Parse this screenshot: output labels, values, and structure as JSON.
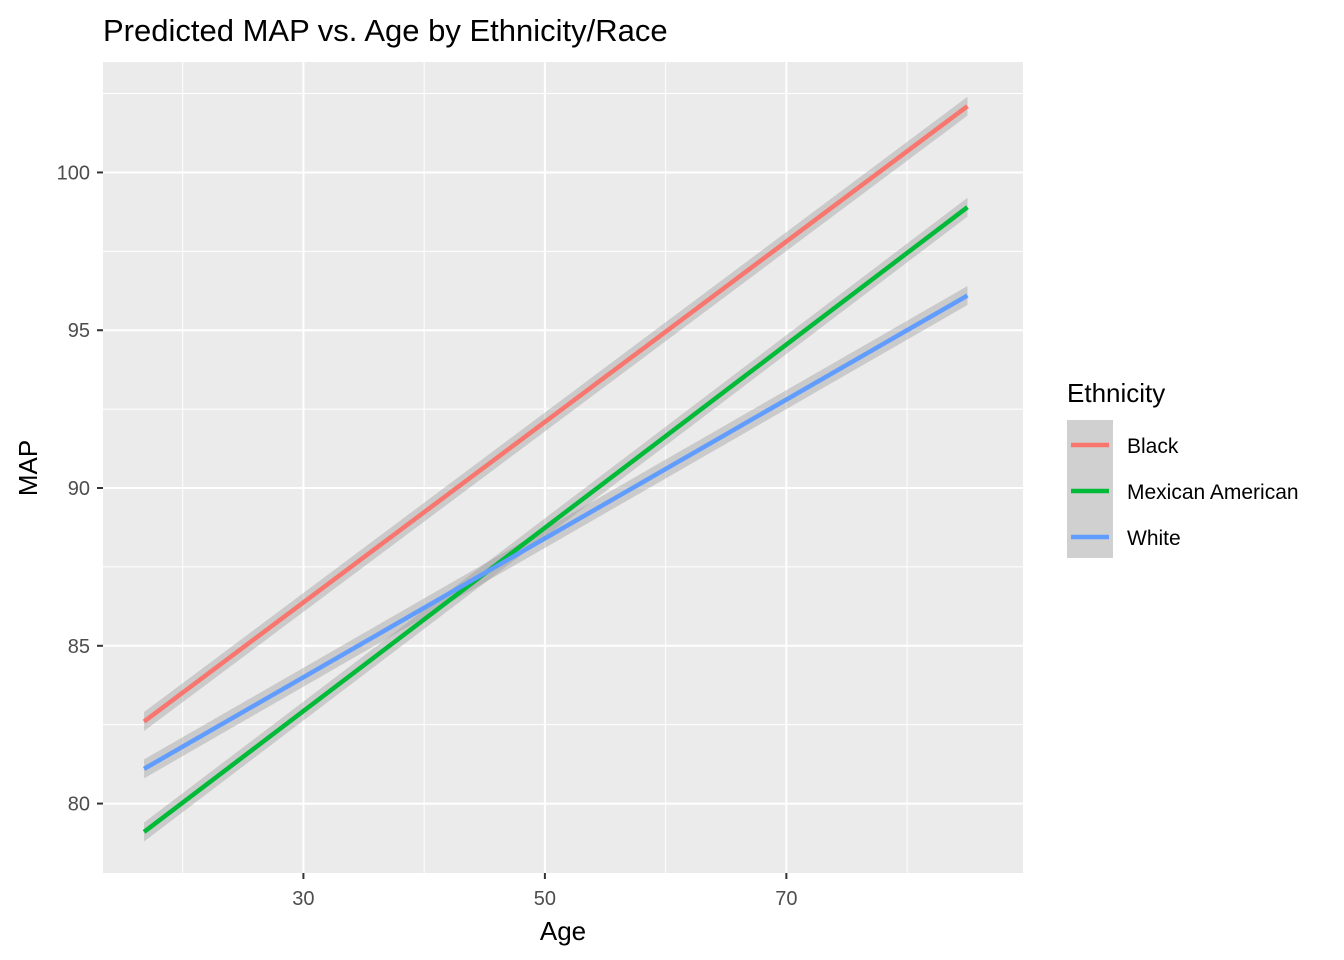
{
  "chart_data": {
    "type": "line",
    "title": "Predicted MAP vs. Age by Ethnicity/Race",
    "xlabel": "Age",
    "ylabel": "MAP",
    "xlim": [
      13.4,
      89.6
    ],
    "ylim": [
      77.8,
      103.5
    ],
    "x_ticks": [
      30,
      50,
      70
    ],
    "x_tick_labels": [
      "30",
      "50",
      "70"
    ],
    "x_minor_ticks": [
      20,
      40,
      60,
      80
    ],
    "y_ticks": [
      80,
      85,
      90,
      95,
      100
    ],
    "y_tick_labels": [
      "80",
      "85",
      "90",
      "95",
      "100"
    ],
    "y_minor_ticks": [
      82.5,
      87.5,
      92.5,
      97.5,
      102.5
    ],
    "grid": true,
    "legend": {
      "title": "Ethnicity",
      "position": "right"
    },
    "confidence_band": true,
    "series": [
      {
        "name": "Black",
        "color": "#F8766D",
        "x": [
          16.8,
          85
        ],
        "y": [
          82.6,
          102.1
        ],
        "band_halfwidth": 0.3
      },
      {
        "name": "Mexican American",
        "color": "#00BA38",
        "x": [
          16.8,
          85
        ],
        "y": [
          79.1,
          98.9
        ],
        "band_halfwidth": 0.3
      },
      {
        "name": "White",
        "color": "#619CFF",
        "x": [
          16.8,
          85
        ],
        "y": [
          81.1,
          96.1
        ],
        "band_halfwidth": 0.3
      }
    ]
  }
}
